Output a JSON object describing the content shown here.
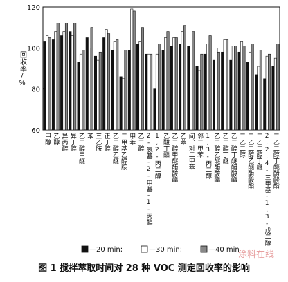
{
  "chart_data": {
    "type": "bar",
    "caption": "图 1  搅拌萃取时间对 28 种 VOC 测定回收率的影响",
    "ylabel": "回收率/%",
    "watermark": "涂料在线",
    "categories": [
      "甲醇",
      "乙醇",
      "异丙醇",
      "异丁醇",
      "乙二醇甲醚",
      "苯",
      "三乙胺",
      "正丁醇",
      "乙二醇乙醚",
      "二甲基乙醇胺",
      "甲苯",
      "乙二醇",
      "2-氨基-2-甲基-1-丙醇",
      "1,2-丙二醇",
      "乙酸丁酯",
      "乙二醇甲醚醋酸酯",
      "乙苯",
      "间、对二甲苯",
      "邻二甲苯",
      "1,3-丙二醇",
      "乙二醇乙醚醋酸酯",
      "乙二醇丁醚",
      "乙二醇丁醚醋酸酯",
      "二乙二醇",
      "二乙二醇乙醚醋酸酯",
      "二乙二醇丁醚",
      "2,2,4-三甲基-1,3-戊二醇",
      "二乙二醇丁醚醋酸酯"
    ],
    "series": [
      {
        "name": "—20 min;",
        "color": "#111111",
        "values": [
          103,
          104,
          106,
          108,
          93,
          105,
          96,
          105,
          99,
          86,
          99,
          102,
          97,
          80,
          99,
          101,
          102,
          101,
          91,
          97,
          94,
          98,
          94,
          98,
          93,
          87,
          85,
          91
        ]
      },
      {
        "name": "—30 min;",
        "color": "#ffffff",
        "values": [
          106,
          108,
          108,
          106,
          97,
          100,
          94,
          109,
          103,
          85,
          119,
          103,
          97,
          97,
          105,
          105,
          108,
          101,
          89,
          102,
          100,
          104,
          101,
          103,
          98,
          91,
          96,
          95
        ]
      },
      {
        "name": "—40 min",
        "color": "#888888",
        "values": [
          105,
          112,
          112,
          112,
          99,
          110,
          98,
          107,
          104,
          99,
          118,
          110,
          97,
          102,
          108,
          105,
          111,
          108,
          97,
          106,
          98,
          104,
          101,
          101,
          102,
          99,
          97,
          102
        ]
      }
    ],
    "ylim": [
      60,
      120
    ],
    "yticks": [
      60,
      80,
      100,
      120
    ]
  }
}
